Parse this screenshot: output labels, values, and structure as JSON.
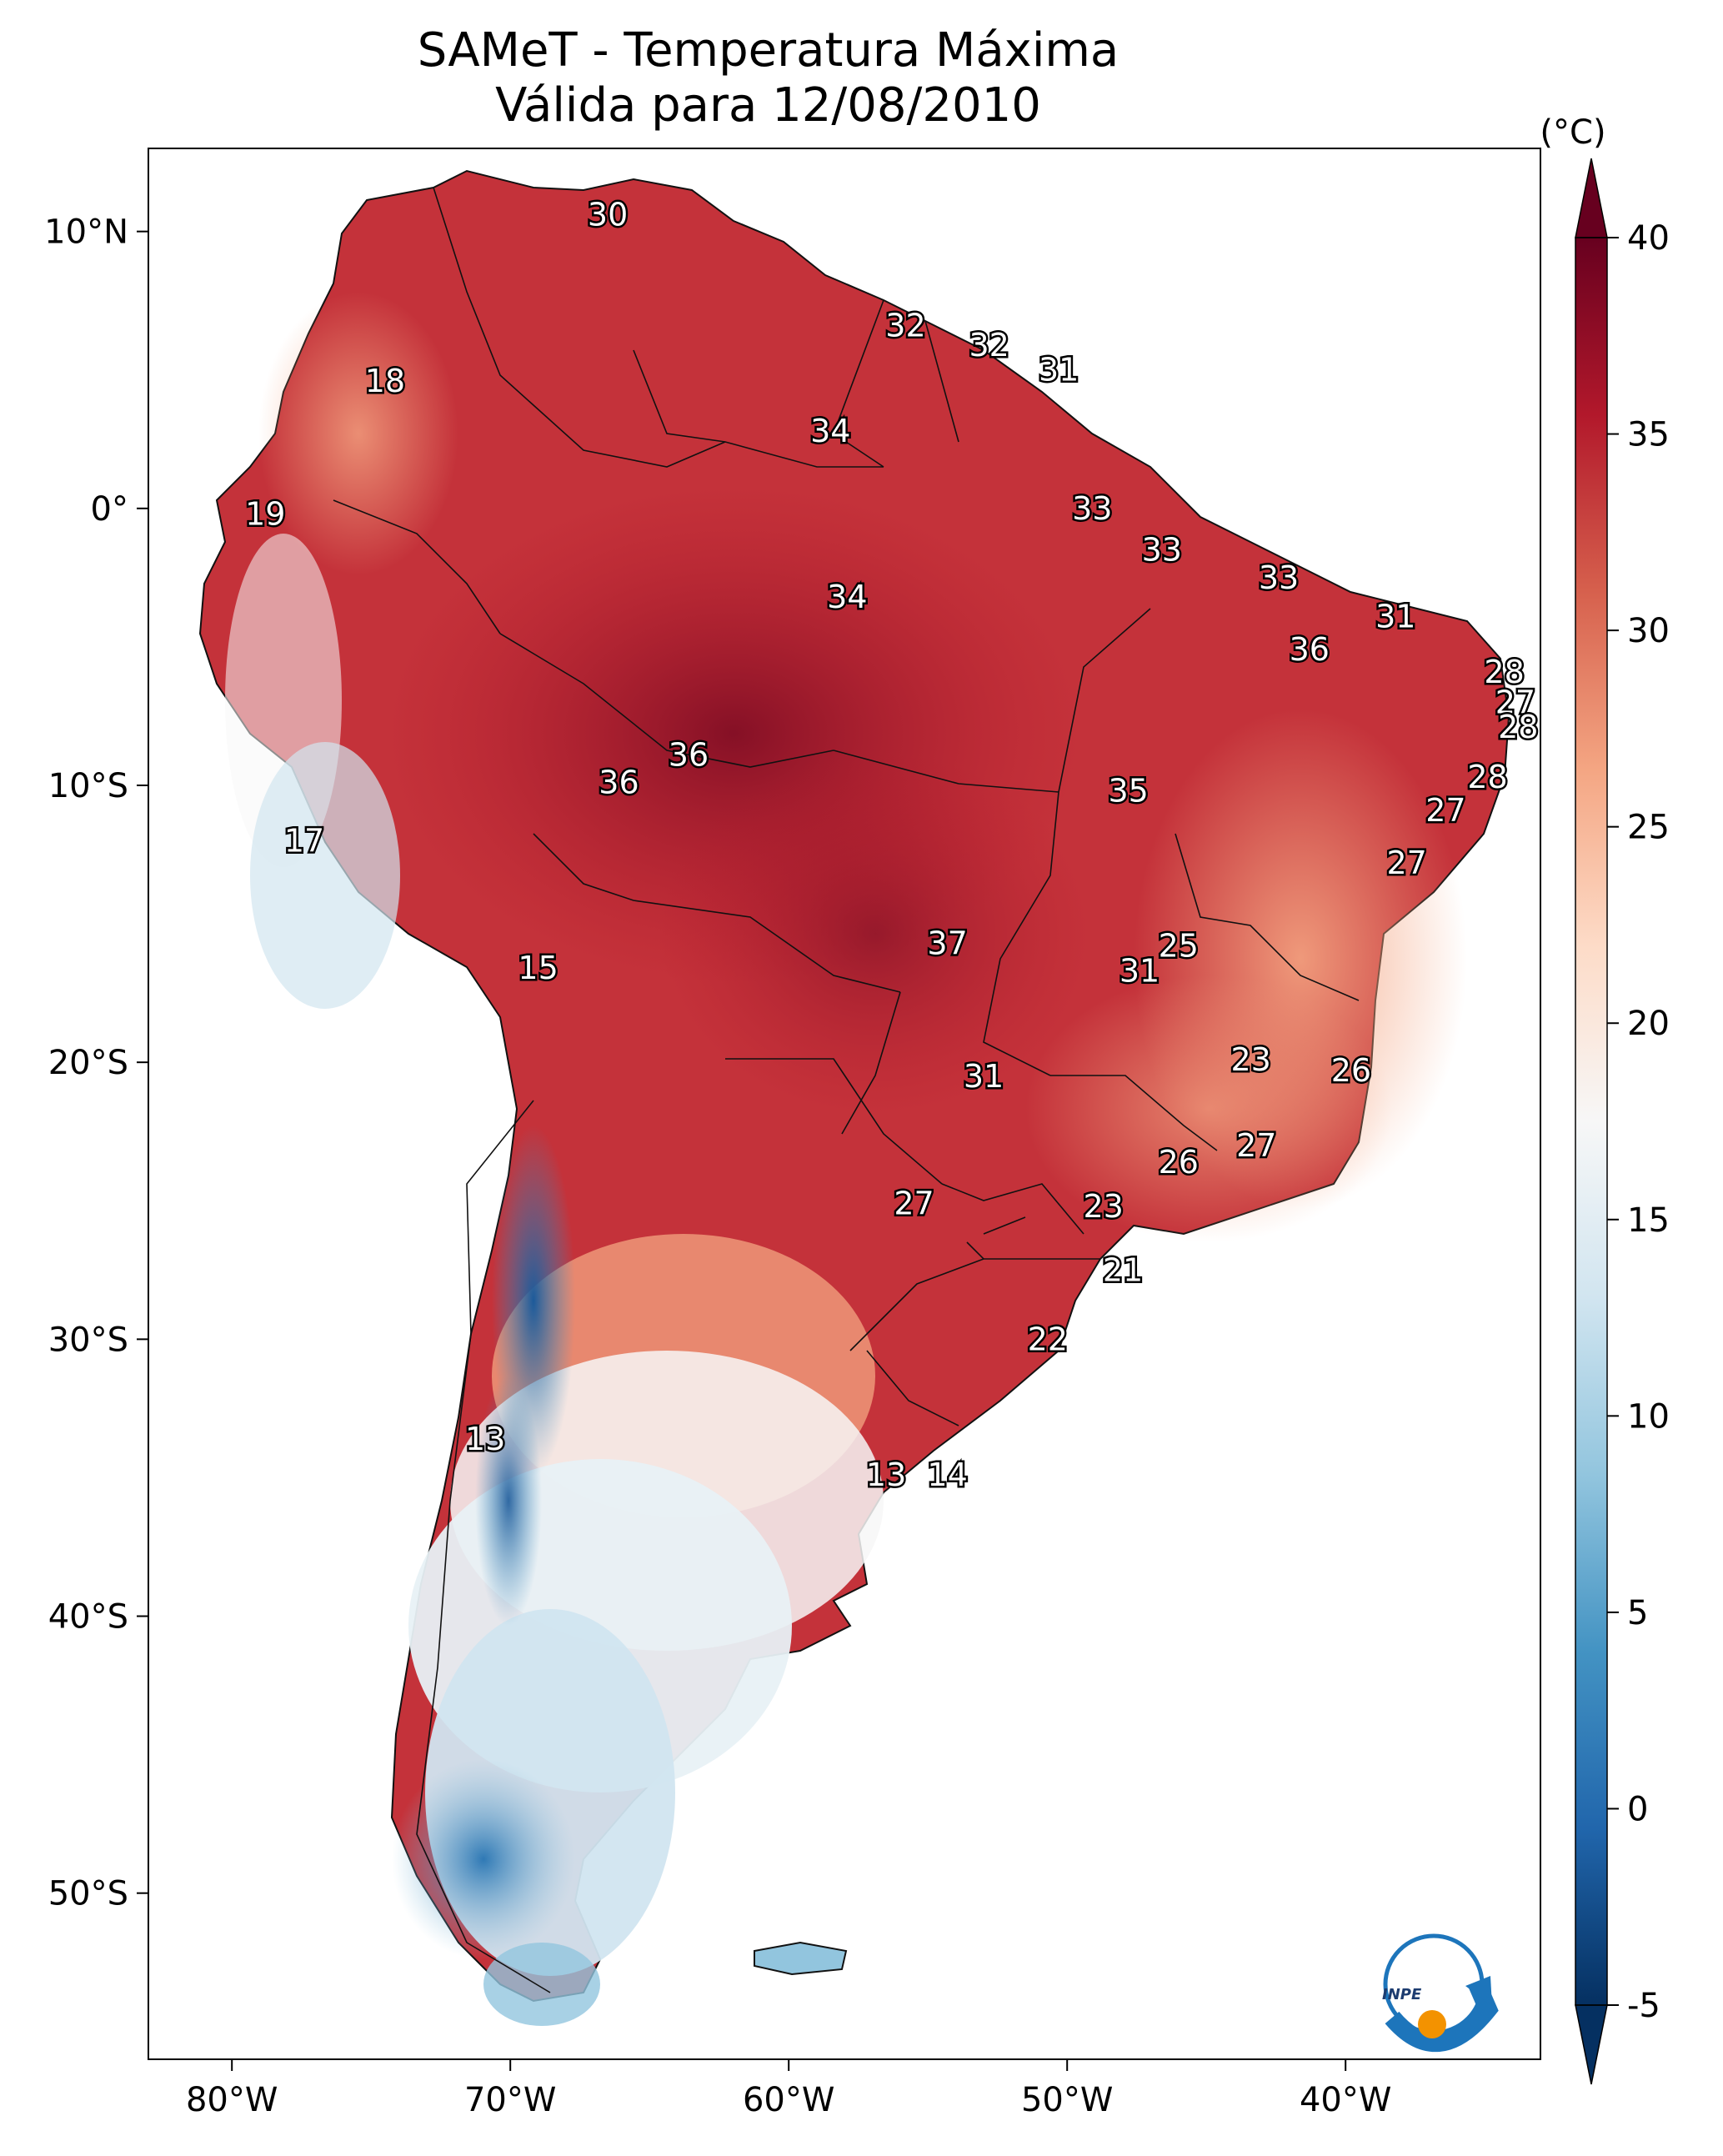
{
  "title": {
    "line1": "SAMeT - Temperatura Máxima",
    "line2": "Válida para 12/08/2010"
  },
  "map": {
    "lon_range": [
      -83,
      -33
    ],
    "lat_range": [
      -56,
      13
    ],
    "lon_ticks": [
      {
        "value": -80,
        "label": "80°W"
      },
      {
        "value": -70,
        "label": "70°W"
      },
      {
        "value": -60,
        "label": "60°W"
      },
      {
        "value": -50,
        "label": "50°W"
      },
      {
        "value": -40,
        "label": "40°W"
      }
    ],
    "lat_ticks": [
      {
        "value": 10,
        "label": "10°N"
      },
      {
        "value": 0,
        "label": "0°"
      },
      {
        "value": -10,
        "label": "10°S"
      },
      {
        "value": -20,
        "label": "20°S"
      },
      {
        "value": -30,
        "label": "30°S"
      },
      {
        "value": -40,
        "label": "40°S"
      },
      {
        "value": -50,
        "label": "50°S"
      }
    ],
    "contour_labels": [
      {
        "text": "30",
        "lon": -66.5,
        "lat": 10.6
      },
      {
        "text": "32",
        "lon": -55.8,
        "lat": 6.6
      },
      {
        "text": "32",
        "lon": -52.8,
        "lat": 5.9
      },
      {
        "text": "31",
        "lon": -50.3,
        "lat": 5.0
      },
      {
        "text": "34",
        "lon": -58.5,
        "lat": 2.8
      },
      {
        "text": "18",
        "lon": -74.5,
        "lat": 4.6
      },
      {
        "text": "19",
        "lon": -78.8,
        "lat": -0.2
      },
      {
        "text": "33",
        "lon": -49.1,
        "lat": 0.0
      },
      {
        "text": "33",
        "lon": -46.6,
        "lat": -1.5
      },
      {
        "text": "33",
        "lon": -42.4,
        "lat": -2.5
      },
      {
        "text": "34",
        "lon": -57.9,
        "lat": -3.2
      },
      {
        "text": "31",
        "lon": -38.2,
        "lat": -3.9
      },
      {
        "text": "36",
        "lon": -41.3,
        "lat": -5.1
      },
      {
        "text": "28",
        "lon": -34.3,
        "lat": -5.9
      },
      {
        "text": "27",
        "lon": -33.9,
        "lat": -7.0
      },
      {
        "text": "28",
        "lon": -33.8,
        "lat": -7.9
      },
      {
        "text": "36",
        "lon": -63.6,
        "lat": -8.9
      },
      {
        "text": "36",
        "lon": -66.1,
        "lat": -9.9
      },
      {
        "text": "28",
        "lon": -34.9,
        "lat": -9.7
      },
      {
        "text": "35",
        "lon": -47.8,
        "lat": -10.2
      },
      {
        "text": "27",
        "lon": -36.4,
        "lat": -10.9
      },
      {
        "text": "17",
        "lon": -77.4,
        "lat": -12.0
      },
      {
        "text": "27",
        "lon": -37.8,
        "lat": -12.8
      },
      {
        "text": "37",
        "lon": -54.3,
        "lat": -15.7
      },
      {
        "text": "25",
        "lon": -46.0,
        "lat": -15.8
      },
      {
        "text": "15",
        "lon": -69.0,
        "lat": -16.6
      },
      {
        "text": "31",
        "lon": -47.4,
        "lat": -16.7
      },
      {
        "text": "23",
        "lon": -43.4,
        "lat": -19.9
      },
      {
        "text": "26",
        "lon": -39.8,
        "lat": -20.3
      },
      {
        "text": "31",
        "lon": -53.0,
        "lat": -20.5
      },
      {
        "text": "27",
        "lon": -43.2,
        "lat": -23.0
      },
      {
        "text": "26",
        "lon": -46.0,
        "lat": -23.6
      },
      {
        "text": "27",
        "lon": -55.5,
        "lat": -25.1
      },
      {
        "text": "23",
        "lon": -48.7,
        "lat": -25.2
      },
      {
        "text": "21",
        "lon": -48.0,
        "lat": -27.5
      },
      {
        "text": "22",
        "lon": -50.7,
        "lat": -30.0
      },
      {
        "text": "13",
        "lon": -70.9,
        "lat": -33.6
      },
      {
        "text": "13",
        "lon": -56.5,
        "lat": -34.9
      },
      {
        "text": "14",
        "lon": -54.3,
        "lat": -34.9
      }
    ]
  },
  "colorbar": {
    "unit": "(°C)",
    "min": -5,
    "max": 40,
    "ticks": [
      {
        "value": 40,
        "label": "40"
      },
      {
        "value": 35,
        "label": "35"
      },
      {
        "value": 30,
        "label": "30"
      },
      {
        "value": 25,
        "label": "25"
      },
      {
        "value": 20,
        "label": "20"
      },
      {
        "value": 15,
        "label": "15"
      },
      {
        "value": 10,
        "label": "10"
      },
      {
        "value": 5,
        "label": "5"
      },
      {
        "value": 0,
        "label": "0"
      },
      {
        "value": -5,
        "label": "-5"
      }
    ],
    "colors": [
      "#053061",
      "#2166ac",
      "#4393c3",
      "#92c5de",
      "#d1e5f0",
      "#f7f7f7",
      "#fddbc7",
      "#f4a582",
      "#d6604d",
      "#b2182b",
      "#67001f"
    ]
  },
  "logo": {
    "text": "INPE",
    "icon": "inpe-logo-icon"
  }
}
